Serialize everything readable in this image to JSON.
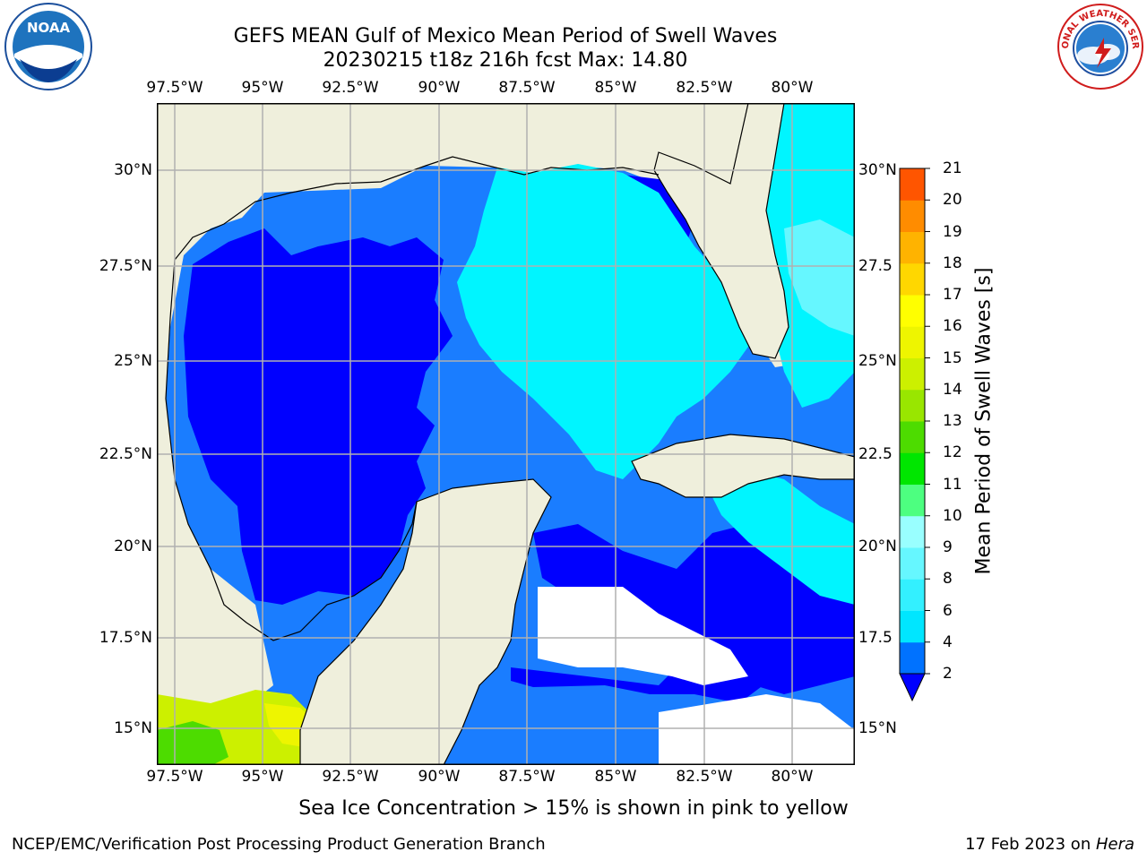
{
  "header": {
    "title_line1": "GEFS MEAN Gulf of Mexico Mean Period of Swell Waves",
    "title_line2": "20230215 t18z 216h fcst   Max: 14.80"
  },
  "logos": {
    "left": "NOAA",
    "right": "NATIONAL WEATHER SERVICE"
  },
  "map": {
    "lon_ticks": [
      "97.5°W",
      "95°W",
      "92.5°W",
      "90°W",
      "87.5°W",
      "85°W",
      "82.5°W",
      "80°W"
    ],
    "lat_ticks_left": [
      "30°N",
      "27.5°N",
      "25°N",
      "22.5°N",
      "20°N",
      "17.5°N",
      "15°N"
    ],
    "lat_ticks_right": [
      "30°N",
      "27.5",
      "25°N",
      "22.5",
      "20°N",
      "17.5",
      "15°N"
    ],
    "colors": {
      "land": "#efefdc",
      "grid": "#b0b0b0",
      "coast": "#000000"
    }
  },
  "colorbar": {
    "label": "Mean Period of Swell Waves [s]",
    "ticks": [
      "2",
      "4",
      "6",
      "8",
      "9",
      "10",
      "11",
      "12",
      "13",
      "14",
      "15",
      "16",
      "17",
      "18",
      "19",
      "20",
      "21"
    ],
    "colors": [
      "#0072ff",
      "#00e6ff",
      "#33f0ff",
      "#66f7ff",
      "#99ffff",
      "#4dff80",
      "#00e600",
      "#4ddc00",
      "#99e600",
      "#ccf000",
      "#eef500",
      "#ffff00",
      "#ffd700",
      "#ffb300",
      "#ff8c00",
      "#ff5500",
      "#ff2200",
      "#ff0000"
    ],
    "under_color": "#0000ff"
  },
  "footer": {
    "note": "Sea Ice Concentration > 15% is shown in pink to yellow",
    "left": "NCEP/EMC/Verification Post Processing Product Generation Branch",
    "right_prefix": "17 Feb 2023 on ",
    "right_host": "Hera"
  }
}
